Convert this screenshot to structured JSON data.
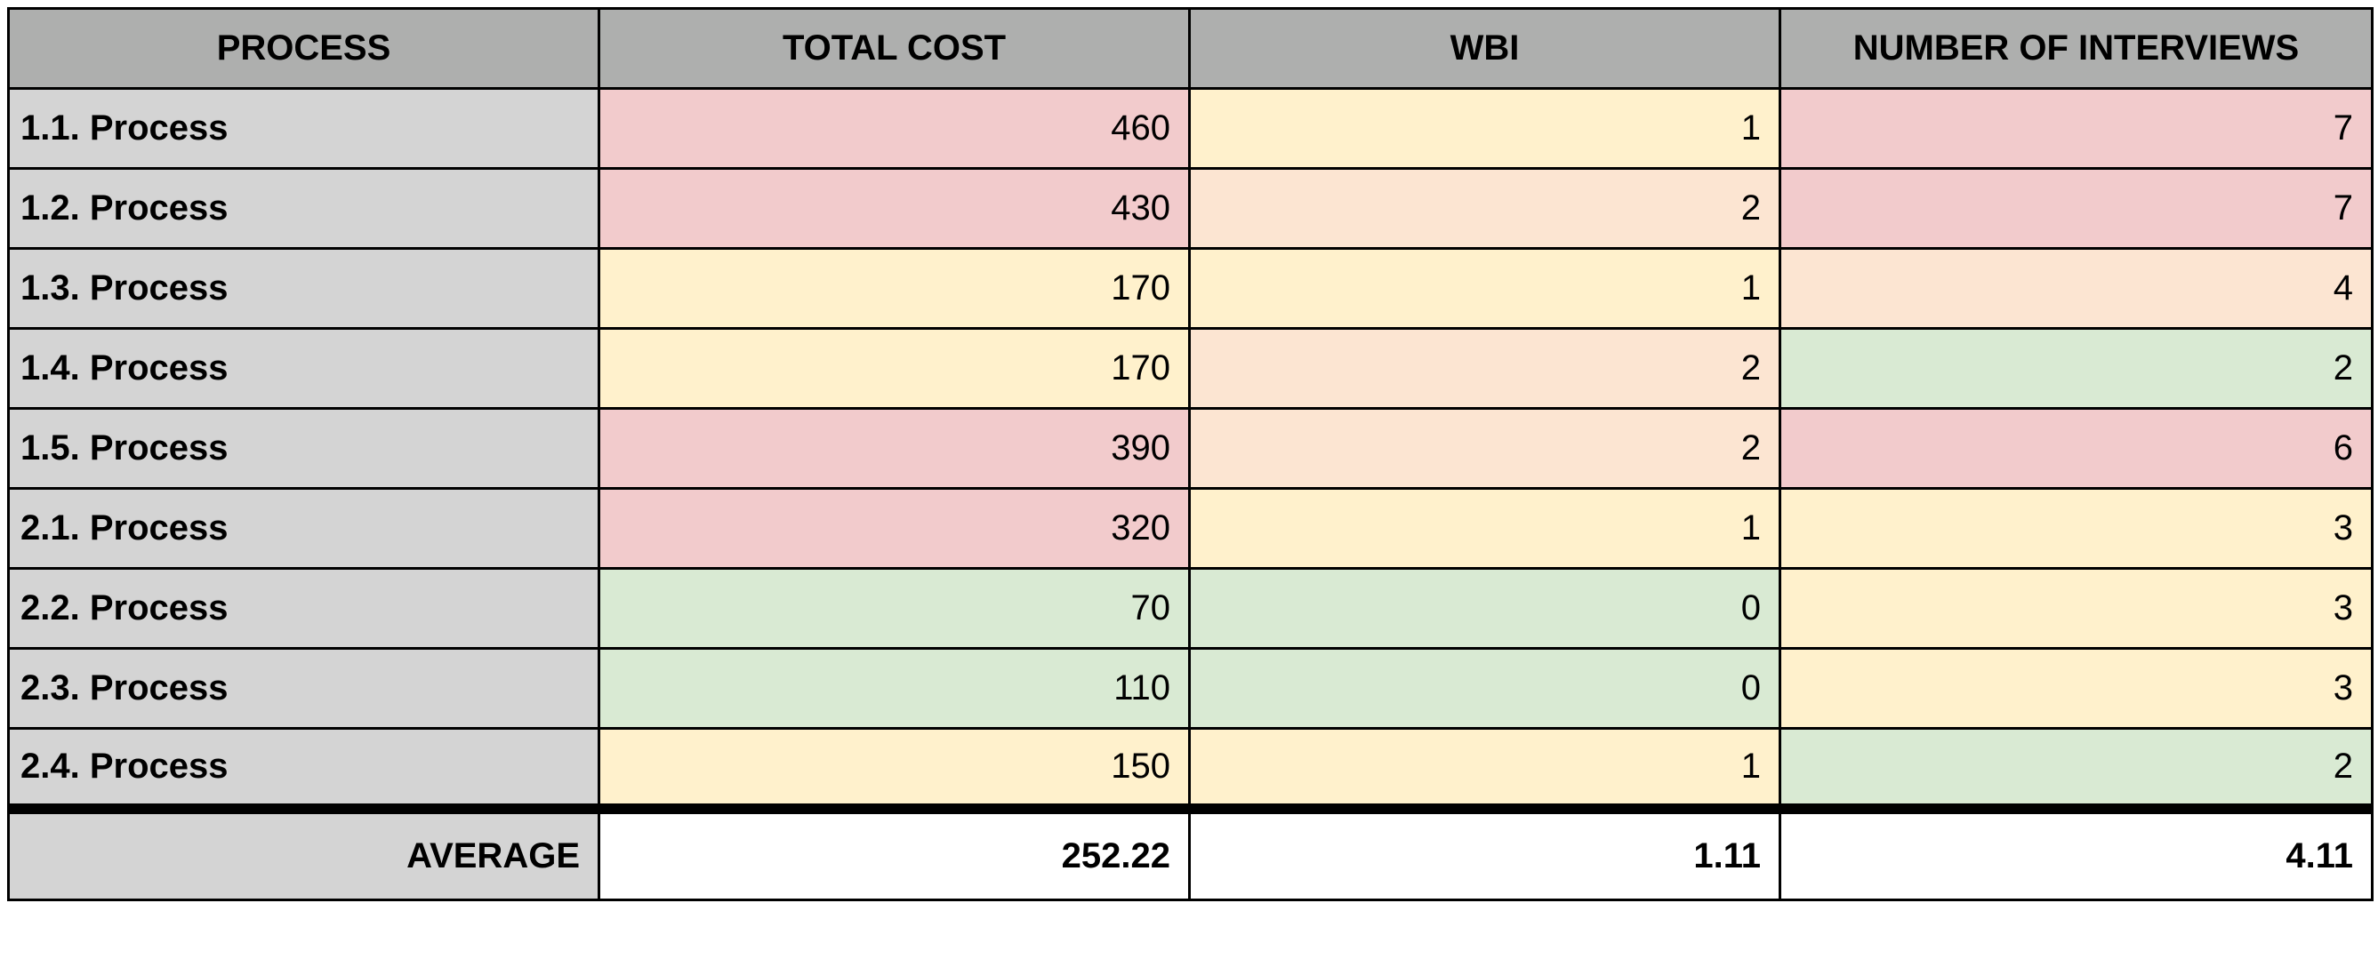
{
  "table": {
    "headers": [
      "PROCESS",
      "TOTAL COST",
      "WBI",
      "NUMBER OF INTERVIEWS"
    ],
    "rows": [
      {
        "process": "1.1. Process",
        "total_cost": "460",
        "wbi": "1",
        "interviews": "7"
      },
      {
        "process": "1.2. Process",
        "total_cost": "430",
        "wbi": "2",
        "interviews": "7"
      },
      {
        "process": "1.3. Process",
        "total_cost": "170",
        "wbi": "1",
        "interviews": "4"
      },
      {
        "process": "1.4. Process",
        "total_cost": "170",
        "wbi": "2",
        "interviews": "2"
      },
      {
        "process": "1.5. Process",
        "total_cost": "390",
        "wbi": "2",
        "interviews": "6"
      },
      {
        "process": "2.1. Process",
        "total_cost": "320",
        "wbi": "1",
        "interviews": "3"
      },
      {
        "process": "2.2. Process",
        "total_cost": "70",
        "wbi": "0",
        "interviews": "3"
      },
      {
        "process": "2.3. Process",
        "total_cost": "110",
        "wbi": "0",
        "interviews": "3"
      },
      {
        "process": "2.4. Process",
        "total_cost": "150",
        "wbi": "1",
        "interviews": "2"
      }
    ],
    "average": {
      "label": "AVERAGE",
      "total_cost": "252.22",
      "wbi": "1.11",
      "interviews": "4.11"
    }
  },
  "colors": {
    "header_bg": "#aeafae",
    "label_bg": "#d4d4d4",
    "red": "#f2cbcc",
    "orange": "#fce5d2",
    "yellow": "#fff1cc",
    "green": "#d9ead3"
  }
}
